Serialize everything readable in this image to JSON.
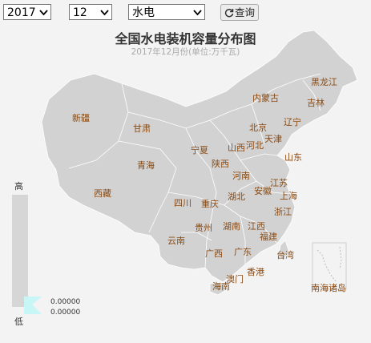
{
  "controls": {
    "year": "2017",
    "month": "12",
    "energy_type": "水电",
    "query_button": "查询",
    "icon": "refresh-icon"
  },
  "title": "全国水电装机容量分布图",
  "subtitle": "2017年12月份(单位:万千瓦)",
  "legend": {
    "high": "高",
    "low": "低",
    "max_value": "0.00000",
    "min_value": "0.00000"
  },
  "colors": {
    "province_fill": "#d2d2d2",
    "label": "#8a4a12",
    "highlight": "#c8f5f5"
  },
  "provinces": [
    {
      "name": "黑龙江",
      "value": 0
    },
    {
      "name": "吉林",
      "value": 0
    },
    {
      "name": "辽宁",
      "value": 0
    },
    {
      "name": "内蒙古",
      "value": 0
    },
    {
      "name": "新疆",
      "value": 0
    },
    {
      "name": "甘肃",
      "value": 0
    },
    {
      "name": "北京",
      "value": 0
    },
    {
      "name": "天津",
      "value": 0
    },
    {
      "name": "河北",
      "value": 0
    },
    {
      "name": "宁夏",
      "value": 0
    },
    {
      "name": "山西",
      "value": 0
    },
    {
      "name": "山东",
      "value": 0
    },
    {
      "name": "青海",
      "value": 0
    },
    {
      "name": "陕西",
      "value": 0
    },
    {
      "name": "河南",
      "value": 0
    },
    {
      "name": "江苏",
      "value": 0
    },
    {
      "name": "西藏",
      "value": 0
    },
    {
      "name": "安徽",
      "value": 0
    },
    {
      "name": "上海",
      "value": 0
    },
    {
      "name": "湖北",
      "value": 0
    },
    {
      "name": "四川",
      "value": 0
    },
    {
      "name": "重庆",
      "value": 0
    },
    {
      "name": "浙江",
      "value": 0
    },
    {
      "name": "贵州",
      "value": 0
    },
    {
      "name": "湖南",
      "value": 0
    },
    {
      "name": "江西",
      "value": 0
    },
    {
      "name": "福建",
      "value": 0
    },
    {
      "name": "云南",
      "value": 0
    },
    {
      "name": "台湾",
      "value": 0
    },
    {
      "name": "广西",
      "value": 0
    },
    {
      "name": "广东",
      "value": 0
    },
    {
      "name": "香港",
      "value": 0
    },
    {
      "name": "澳门",
      "value": 0
    },
    {
      "name": "海南",
      "value": 0
    },
    {
      "name": "南海诸岛",
      "value": 0
    }
  ]
}
